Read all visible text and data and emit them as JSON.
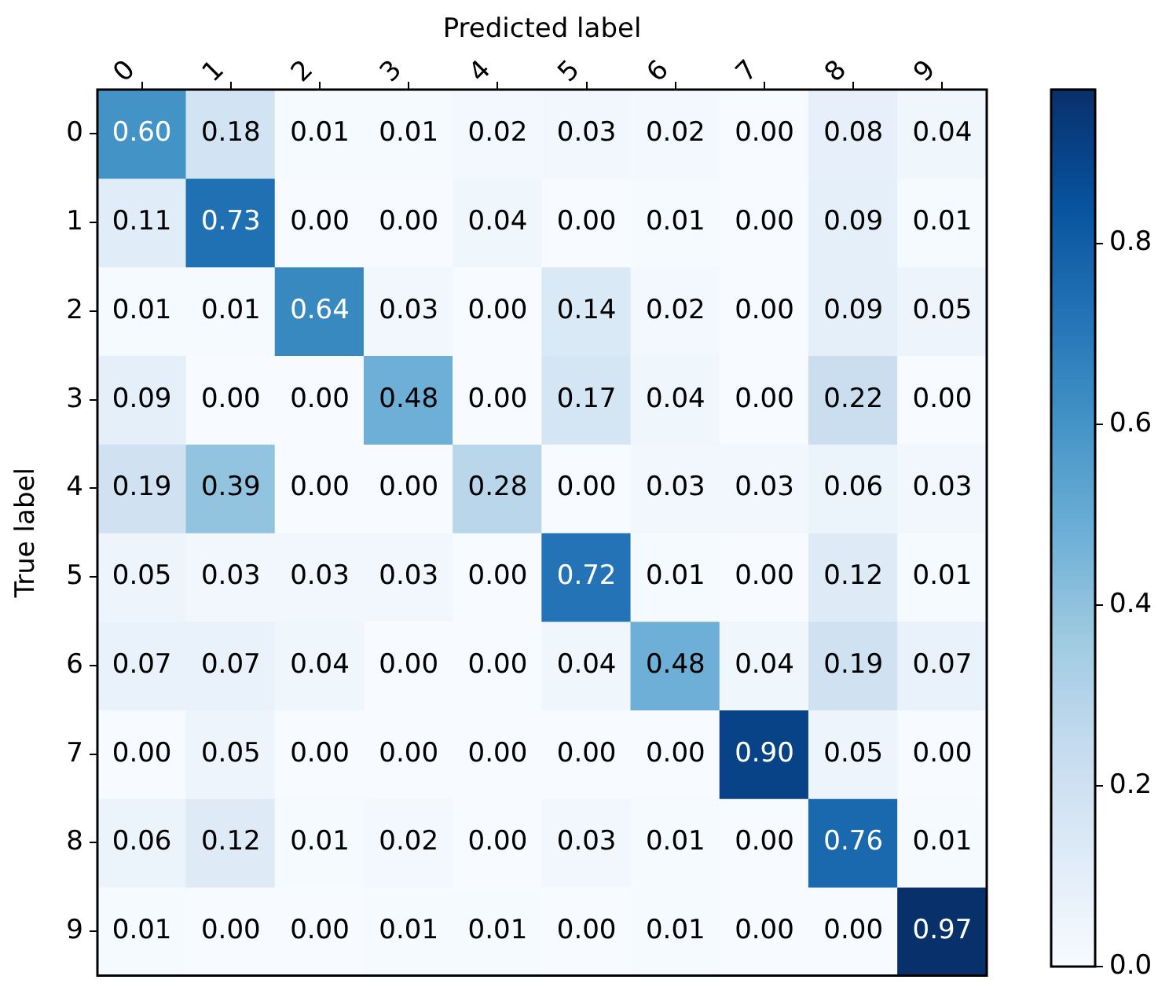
{
  "chart_data": {
    "type": "heatmap",
    "xlabel": "Predicted label",
    "ylabel": "True label",
    "categories": [
      "0",
      "1",
      "2",
      "3",
      "4",
      "5",
      "6",
      "7",
      "8",
      "9"
    ],
    "y_categories": [
      "0",
      "1",
      "2",
      "3",
      "4",
      "5",
      "6",
      "7",
      "8",
      "9"
    ],
    "cells": [
      [
        0.6,
        0.18,
        0.01,
        0.01,
        0.02,
        0.03,
        0.02,
        0.0,
        0.08,
        0.04
      ],
      [
        0.11,
        0.73,
        0.0,
        0.0,
        0.04,
        0.0,
        0.01,
        0.0,
        0.09,
        0.01
      ],
      [
        0.01,
        0.01,
        0.64,
        0.03,
        0.0,
        0.14,
        0.02,
        0.0,
        0.09,
        0.05
      ],
      [
        0.09,
        0.0,
        0.0,
        0.48,
        0.0,
        0.17,
        0.04,
        0.0,
        0.22,
        0.0
      ],
      [
        0.19,
        0.39,
        0.0,
        0.0,
        0.28,
        0.0,
        0.03,
        0.03,
        0.06,
        0.03
      ],
      [
        0.05,
        0.03,
        0.03,
        0.03,
        0.0,
        0.72,
        0.01,
        0.0,
        0.12,
        0.01
      ],
      [
        0.07,
        0.07,
        0.04,
        0.0,
        0.0,
        0.04,
        0.48,
        0.04,
        0.19,
        0.07
      ],
      [
        0.0,
        0.05,
        0.0,
        0.0,
        0.0,
        0.0,
        0.0,
        0.9,
        0.05,
        0.0
      ],
      [
        0.06,
        0.12,
        0.01,
        0.02,
        0.0,
        0.03,
        0.01,
        0.0,
        0.76,
        0.01
      ],
      [
        0.01,
        0.0,
        0.0,
        0.01,
        0.01,
        0.0,
        0.01,
        0.0,
        0.0,
        0.97
      ]
    ],
    "cell_labels": [
      [
        "0.60",
        "0.18",
        "0.01",
        "0.01",
        "0.02",
        "0.03",
        "0.02",
        "0.00",
        "0.08",
        "0.04"
      ],
      [
        "0.11",
        "0.73",
        "0.00",
        "0.00",
        "0.04",
        "0.00",
        "0.01",
        "0.00",
        "0.09",
        "0.01"
      ],
      [
        "0.01",
        "0.01",
        "0.64",
        "0.03",
        "0.00",
        "0.14",
        "0.02",
        "0.00",
        "0.09",
        "0.05"
      ],
      [
        "0.09",
        "0.00",
        "0.00",
        "0.48",
        "0.00",
        "0.17",
        "0.04",
        "0.00",
        "0.22",
        "0.00"
      ],
      [
        "0.19",
        "0.39",
        "0.00",
        "0.00",
        "0.28",
        "0.00",
        "0.03",
        "0.03",
        "0.06",
        "0.03"
      ],
      [
        "0.05",
        "0.03",
        "0.03",
        "0.03",
        "0.00",
        "0.72",
        "0.01",
        "0.00",
        "0.12",
        "0.01"
      ],
      [
        "0.07",
        "0.07",
        "0.04",
        "0.00",
        "0.00",
        "0.04",
        "0.48",
        "0.04",
        "0.19",
        "0.07"
      ],
      [
        "0.00",
        "0.05",
        "0.00",
        "0.00",
        "0.00",
        "0.00",
        "0.00",
        "0.90",
        "0.05",
        "0.00"
      ],
      [
        "0.06",
        "0.12",
        "0.01",
        "0.02",
        "0.00",
        "0.03",
        "0.01",
        "0.00",
        "0.76",
        "0.01"
      ],
      [
        "0.01",
        "0.00",
        "0.00",
        "0.01",
        "0.01",
        "0.00",
        "0.01",
        "0.00",
        "0.00",
        "0.97"
      ]
    ],
    "data_labels": true,
    "clim": [
      0,
      0.97
    ],
    "cticks": [
      {
        "value": 0,
        "label": "0.0"
      },
      0.2,
      0.4,
      0.6,
      0.8
    ]
  }
}
